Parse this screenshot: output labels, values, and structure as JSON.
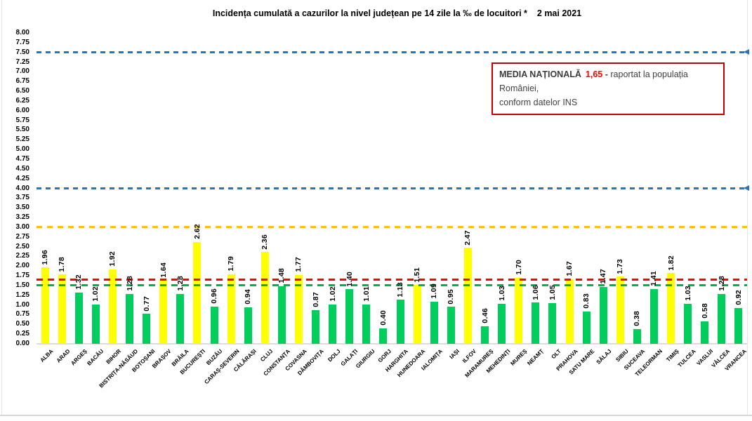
{
  "title": "Incidența cumulată a cazurilor la nivel județean pe 14 zile la ‰ de locuitori *",
  "date": "2 mai 2021",
  "annotation": {
    "label": "MEDIA NAȚIONALĂ",
    "value": "1,65",
    "separator": "-",
    "line1": "raportat la populația României,",
    "line2": "conform datelor INS"
  },
  "palette": {
    "yellow": "#ffff00",
    "green": "#00ce5c",
    "blue_line": "#2e74b5",
    "orange_line": "#ffc000",
    "red_line": "#ff0000",
    "green_line": "#00b050",
    "box_border": "#c00000",
    "axis_line": "#dcdcdc"
  },
  "chart_data": {
    "type": "bar",
    "title": "Incidența cumulată a cazurilor la nivel județean pe 14 zile la ‰ de locuitori * 2 mai 2021",
    "xlabel": "",
    "ylabel": "",
    "ylim": [
      0,
      8
    ],
    "ytick_step": 0.25,
    "yticks": [
      "0.00",
      "0.25",
      "0.50",
      "0.75",
      "1.00",
      "1.25",
      "1.50",
      "1.75",
      "2.00",
      "2.25",
      "2.50",
      "2.75",
      "3.00",
      "3.25",
      "3.50",
      "3.75",
      "4.00",
      "4.25",
      "4.50",
      "4.75",
      "5.00",
      "5.25",
      "5.50",
      "5.75",
      "6.00",
      "6.25",
      "6.50",
      "6.75",
      "7.00",
      "7.25",
      "7.50",
      "7.75",
      "8.00"
    ],
    "grid": false,
    "legend": "none",
    "categories": [
      "ALBA",
      "ARAD",
      "ARGEȘ",
      "BACĂU",
      "BIHOR",
      "BISTRIȚA-NĂSĂUD",
      "BOTOȘANI",
      "BRAȘOV",
      "BRĂILA",
      "BUCUREȘTI",
      "BUZĂU",
      "CARAȘ-SEVERIN",
      "CĂLĂRAȘI",
      "CLUJ",
      "CONSTANȚA",
      "COVASNA",
      "DÂMBOVIȚA",
      "DOLJ",
      "GALAȚI",
      "GIURGIU",
      "GORJ",
      "HARGHITA",
      "HUNEDOARA",
      "IALOMIȚA",
      "IAȘI",
      "ILFOV",
      "MARAMUREȘ",
      "MEHEDINȚI",
      "MUREȘ",
      "NEAMȚ",
      "OLT",
      "PRAHOVA",
      "SATU MARE",
      "SĂLAJ",
      "SIBIU",
      "SUCEAVA",
      "TELEORMAN",
      "TIMIȘ",
      "TULCEA",
      "VASLUI",
      "VÂLCEA",
      "VRANCEA"
    ],
    "values": [
      1.96,
      1.78,
      1.32,
      1.02,
      1.92,
      1.28,
      0.77,
      1.64,
      1.28,
      2.62,
      0.96,
      1.79,
      0.94,
      2.36,
      1.48,
      1.77,
      0.87,
      1.02,
      1.4,
      1.01,
      0.4,
      1.13,
      1.51,
      1.09,
      0.95,
      2.47,
      0.46,
      1.03,
      1.7,
      1.06,
      1.05,
      1.67,
      0.83,
      1.47,
      1.73,
      0.38,
      1.41,
      1.82,
      1.03,
      0.58,
      1.28,
      0.92
    ],
    "bar_colors": [
      "yellow",
      "yellow",
      "green",
      "green",
      "yellow",
      "green",
      "green",
      "yellow",
      "green",
      "yellow",
      "green",
      "yellow",
      "green",
      "yellow",
      "green",
      "yellow",
      "green",
      "green",
      "green",
      "green",
      "green",
      "green",
      "yellow",
      "green",
      "green",
      "yellow",
      "green",
      "green",
      "yellow",
      "green",
      "green",
      "yellow",
      "green",
      "green",
      "yellow",
      "green",
      "green",
      "yellow",
      "green",
      "green",
      "green",
      "green"
    ],
    "reference_lines": [
      {
        "value": 7.5,
        "color": "#2e74b5",
        "style": "dashed",
        "dash": 7,
        "gap": 6,
        "arrow": true
      },
      {
        "value": 4.0,
        "color": "#2e74b5",
        "style": "dashed",
        "dash": 7,
        "gap": 6,
        "arrow": true
      },
      {
        "value": 3.0,
        "color": "#ffc000",
        "style": "dashed",
        "dash": 8,
        "gap": 7,
        "arrow": false
      },
      {
        "value": 1.65,
        "color": "#ff0000",
        "style": "dashed",
        "dash": 9,
        "gap": 7,
        "arrow": false
      },
      {
        "value": 1.5,
        "color": "#00b050",
        "style": "dashed",
        "dash": 9,
        "gap": 7,
        "arrow": false
      }
    ]
  }
}
